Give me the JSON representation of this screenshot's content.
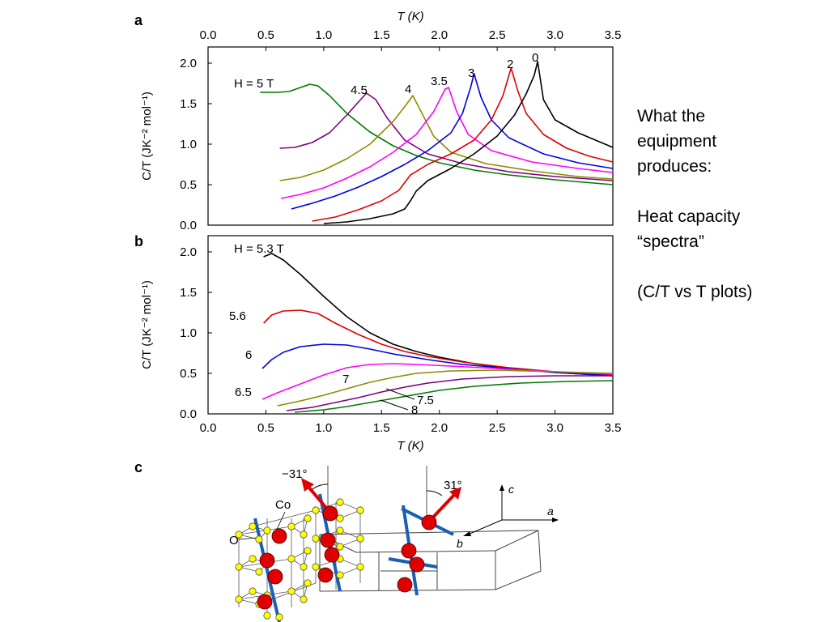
{
  "side_note": {
    "line1": "What the",
    "line2": "equipment",
    "line3": "produces:",
    "line4": "Heat capacity",
    "line5": "“spectra”",
    "line6": "(C/T vs T plots)"
  },
  "panel_labels": {
    "a": "a",
    "b": "b",
    "c": "c"
  },
  "colors": {
    "0": "#000000",
    "2": "#e00000",
    "3": "#0000e0",
    "3.5": "#ff00ff",
    "4": "#8c8c00",
    "4.5": "#800080",
    "5": "#007a00",
    "5.3": "#000000",
    "5.6": "#e00000",
    "6": "#0000e0",
    "6.5": "#ff00ff",
    "7": "#8c8c00",
    "7.5": "#800080",
    "8": "#007a00",
    "spin": "#e00000",
    "atom_co": "#e00000",
    "atom_o": "#ffff00",
    "chain": "#1a5fb4"
  },
  "chart_data": [
    {
      "type": "line",
      "panel": "a",
      "xlabel": "T (K)",
      "ylabel": "C/T (JK⁻² mol⁻¹)",
      "xlim": [
        0,
        3.5
      ],
      "ylim": [
        0,
        2.2
      ],
      "x_ticks": [
        "0.0",
        "0.5",
        "1.0",
        "1.5",
        "2.0",
        "2.5",
        "3.0",
        "3.5"
      ],
      "y_ticks": [
        "0.0",
        "0.5",
        "1.0",
        "1.5",
        "2.0"
      ],
      "x_axis_position": "top",
      "series": [
        {
          "name": "H = 5 T",
          "color_key": "5",
          "points": [
            [
              0.45,
              1.64
            ],
            [
              0.6,
              1.64
            ],
            [
              0.7,
              1.65
            ],
            [
              0.8,
              1.7
            ],
            [
              0.88,
              1.74
            ],
            [
              0.95,
              1.72
            ],
            [
              1.05,
              1.6
            ],
            [
              1.2,
              1.38
            ],
            [
              1.4,
              1.15
            ],
            [
              1.6,
              0.98
            ],
            [
              1.8,
              0.86
            ],
            [
              2.0,
              0.77
            ],
            [
              2.3,
              0.68
            ],
            [
              2.6,
              0.62
            ],
            [
              3.0,
              0.56
            ],
            [
              3.5,
              0.5
            ]
          ]
        },
        {
          "name": "4.5",
          "color_key": "4.5",
          "points": [
            [
              0.62,
              0.95
            ],
            [
              0.75,
              0.96
            ],
            [
              0.9,
              1.02
            ],
            [
              1.05,
              1.14
            ],
            [
              1.2,
              1.36
            ],
            [
              1.3,
              1.52
            ],
            [
              1.37,
              1.63
            ],
            [
              1.45,
              1.55
            ],
            [
              1.55,
              1.32
            ],
            [
              1.7,
              1.05
            ],
            [
              1.9,
              0.88
            ],
            [
              2.2,
              0.76
            ],
            [
              2.6,
              0.66
            ],
            [
              3.0,
              0.6
            ],
            [
              3.5,
              0.55
            ]
          ]
        },
        {
          "name": "4",
          "color_key": "4",
          "points": [
            [
              0.62,
              0.55
            ],
            [
              0.8,
              0.59
            ],
            [
              1.0,
              0.68
            ],
            [
              1.2,
              0.82
            ],
            [
              1.4,
              1.0
            ],
            [
              1.6,
              1.28
            ],
            [
              1.72,
              1.5
            ],
            [
              1.77,
              1.6
            ],
            [
              1.85,
              1.38
            ],
            [
              1.95,
              1.1
            ],
            [
              2.1,
              0.9
            ],
            [
              2.4,
              0.76
            ],
            [
              2.8,
              0.67
            ],
            [
              3.2,
              0.6
            ],
            [
              3.5,
              0.57
            ]
          ]
        },
        {
          "name": "3.5",
          "color_key": "3.5",
          "points": [
            [
              0.63,
              0.33
            ],
            [
              0.8,
              0.38
            ],
            [
              1.0,
              0.46
            ],
            [
              1.2,
              0.58
            ],
            [
              1.4,
              0.72
            ],
            [
              1.6,
              0.9
            ],
            [
              1.8,
              1.12
            ],
            [
              1.95,
              1.4
            ],
            [
              2.05,
              1.68
            ],
            [
              2.08,
              1.7
            ],
            [
              2.15,
              1.4
            ],
            [
              2.25,
              1.12
            ],
            [
              2.45,
              0.92
            ],
            [
              2.8,
              0.78
            ],
            [
              3.2,
              0.7
            ],
            [
              3.5,
              0.65
            ]
          ]
        },
        {
          "name": "3",
          "color_key": "3",
          "points": [
            [
              0.72,
              0.2
            ],
            [
              0.9,
              0.27
            ],
            [
              1.1,
              0.36
            ],
            [
              1.3,
              0.47
            ],
            [
              1.5,
              0.6
            ],
            [
              1.7,
              0.75
            ],
            [
              1.9,
              0.92
            ],
            [
              2.1,
              1.14
            ],
            [
              2.2,
              1.38
            ],
            [
              2.27,
              1.7
            ],
            [
              2.3,
              1.87
            ],
            [
              2.36,
              1.58
            ],
            [
              2.45,
              1.3
            ],
            [
              2.6,
              1.08
            ],
            [
              2.9,
              0.88
            ],
            [
              3.2,
              0.77
            ],
            [
              3.5,
              0.7
            ]
          ]
        },
        {
          "name": "2",
          "color_key": "2",
          "points": [
            [
              0.9,
              0.05
            ],
            [
              1.1,
              0.1
            ],
            [
              1.3,
              0.19
            ],
            [
              1.5,
              0.3
            ],
            [
              1.65,
              0.43
            ],
            [
              1.75,
              0.62
            ],
            [
              1.9,
              0.75
            ],
            [
              2.1,
              0.88
            ],
            [
              2.3,
              1.05
            ],
            [
              2.45,
              1.3
            ],
            [
              2.55,
              1.6
            ],
            [
              2.62,
              1.94
            ],
            [
              2.68,
              1.65
            ],
            [
              2.75,
              1.38
            ],
            [
              2.9,
              1.12
            ],
            [
              3.1,
              0.95
            ],
            [
              3.3,
              0.85
            ],
            [
              3.5,
              0.78
            ]
          ]
        },
        {
          "name": "0",
          "color_key": "0",
          "points": [
            [
              1.0,
              0.02
            ],
            [
              1.2,
              0.04
            ],
            [
              1.4,
              0.08
            ],
            [
              1.6,
              0.14
            ],
            [
              1.7,
              0.2
            ],
            [
              1.75,
              0.3
            ],
            [
              1.8,
              0.42
            ],
            [
              1.9,
              0.55
            ],
            [
              2.1,
              0.7
            ],
            [
              2.3,
              0.88
            ],
            [
              2.5,
              1.1
            ],
            [
              2.65,
              1.36
            ],
            [
              2.75,
              1.62
            ],
            [
              2.82,
              1.85
            ],
            [
              2.85,
              2.02
            ],
            [
              2.9,
              1.55
            ],
            [
              3.0,
              1.3
            ],
            [
              3.2,
              1.14
            ],
            [
              3.4,
              1.02
            ],
            [
              3.5,
              0.96
            ]
          ]
        }
      ],
      "annotations": [
        "H = 5 T",
        "4.5",
        "4",
        "3.5",
        "3",
        "2",
        "0"
      ]
    },
    {
      "type": "line",
      "panel": "b",
      "xlabel": "T (K)",
      "ylabel": "C/T (JK⁻² mol⁻¹)",
      "xlim": [
        0,
        3.5
      ],
      "ylim": [
        0,
        2.2
      ],
      "x_ticks": [
        "0.0",
        "0.5",
        "1.0",
        "1.5",
        "2.0",
        "2.5",
        "3.0",
        "3.5"
      ],
      "y_ticks": [
        "0.0",
        "0.5",
        "1.0",
        "1.5",
        "2.0"
      ],
      "series": [
        {
          "name": "H = 5.3 T",
          "color_key": "5.3",
          "points": [
            [
              0.48,
              1.94
            ],
            [
              0.55,
              1.98
            ],
            [
              0.65,
              1.9
            ],
            [
              0.8,
              1.72
            ],
            [
              1.0,
              1.45
            ],
            [
              1.2,
              1.2
            ],
            [
              1.4,
              1.0
            ],
            [
              1.6,
              0.86
            ],
            [
              1.8,
              0.77
            ],
            [
              2.0,
              0.7
            ],
            [
              2.3,
              0.62
            ],
            [
              2.6,
              0.56
            ],
            [
              3.0,
              0.51
            ],
            [
              3.5,
              0.47
            ]
          ]
        },
        {
          "name": "5.6",
          "color_key": "5.6",
          "points": [
            [
              0.48,
              1.12
            ],
            [
              0.55,
              1.22
            ],
            [
              0.65,
              1.27
            ],
            [
              0.8,
              1.28
            ],
            [
              0.95,
              1.24
            ],
            [
              1.1,
              1.12
            ],
            [
              1.3,
              0.98
            ],
            [
              1.5,
              0.86
            ],
            [
              1.7,
              0.77
            ],
            [
              1.9,
              0.71
            ],
            [
              2.2,
              0.64
            ],
            [
              2.6,
              0.57
            ],
            [
              3.0,
              0.52
            ],
            [
              3.5,
              0.48
            ]
          ]
        },
        {
          "name": "6",
          "color_key": "6",
          "points": [
            [
              0.47,
              0.56
            ],
            [
              0.55,
              0.67
            ],
            [
              0.65,
              0.76
            ],
            [
              0.8,
              0.83
            ],
            [
              1.0,
              0.86
            ],
            [
              1.2,
              0.85
            ],
            [
              1.4,
              0.8
            ],
            [
              1.6,
              0.74
            ],
            [
              1.9,
              0.67
            ],
            [
              2.2,
              0.61
            ],
            [
              2.6,
              0.56
            ],
            [
              3.0,
              0.51
            ],
            [
              3.5,
              0.47
            ]
          ]
        },
        {
          "name": "6.5",
          "color_key": "6.5",
          "points": [
            [
              0.47,
              0.18
            ],
            [
              0.6,
              0.26
            ],
            [
              0.8,
              0.37
            ],
            [
              1.0,
              0.48
            ],
            [
              1.2,
              0.57
            ],
            [
              1.4,
              0.61
            ],
            [
              1.6,
              0.62
            ],
            [
              1.8,
              0.61
            ],
            [
              2.1,
              0.59
            ],
            [
              2.5,
              0.56
            ],
            [
              3.0,
              0.52
            ],
            [
              3.5,
              0.49
            ]
          ]
        },
        {
          "name": "7",
          "color_key": "7",
          "points": [
            [
              0.6,
              0.1
            ],
            [
              0.8,
              0.16
            ],
            [
              1.0,
              0.23
            ],
            [
              1.2,
              0.31
            ],
            [
              1.4,
              0.39
            ],
            [
              1.6,
              0.45
            ],
            [
              1.8,
              0.5
            ],
            [
              2.1,
              0.53
            ],
            [
              2.5,
              0.54
            ],
            [
              3.0,
              0.52
            ],
            [
              3.5,
              0.5
            ]
          ]
        },
        {
          "name": "7.5",
          "color_key": "7.5",
          "points": [
            [
              0.68,
              0.04
            ],
            [
              0.9,
              0.08
            ],
            [
              1.1,
              0.14
            ],
            [
              1.3,
              0.2
            ],
            [
              1.5,
              0.27
            ],
            [
              1.7,
              0.33
            ],
            [
              1.9,
              0.38
            ],
            [
              2.2,
              0.43
            ],
            [
              2.6,
              0.46
            ],
            [
              3.0,
              0.47
            ],
            [
              3.5,
              0.47
            ]
          ]
        },
        {
          "name": "8",
          "color_key": "8",
          "points": [
            [
              0.75,
              0.02
            ],
            [
              1.0,
              0.05
            ],
            [
              1.2,
              0.09
            ],
            [
              1.4,
              0.14
            ],
            [
              1.6,
              0.19
            ],
            [
              1.8,
              0.24
            ],
            [
              2.0,
              0.29
            ],
            [
              2.3,
              0.34
            ],
            [
              2.7,
              0.38
            ],
            [
              3.1,
              0.4
            ],
            [
              3.5,
              0.41
            ]
          ]
        }
      ],
      "annotations": [
        "H = 5.3 T",
        "5.6",
        "6",
        "6.5",
        "7",
        "7.5",
        "8"
      ]
    }
  ],
  "panel_c": {
    "angle_left": "−31°",
    "angle_right": "31°",
    "label_co": "Co",
    "label_o": "O",
    "axis_c": "c",
    "axis_a": "a",
    "axis_b": "b"
  }
}
